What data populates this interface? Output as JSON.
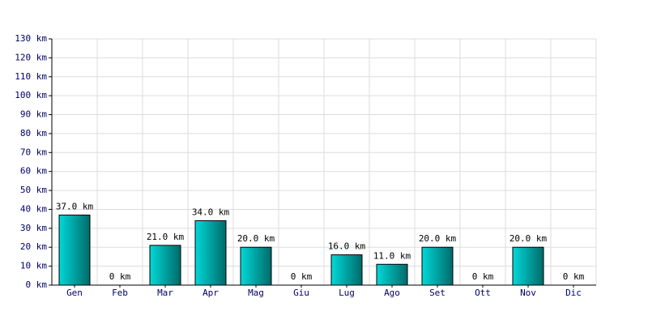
{
  "chart_data": {
    "type": "bar",
    "categories": [
      "Gen",
      "Feb",
      "Mar",
      "Apr",
      "Mag",
      "Giu",
      "Lug",
      "Ago",
      "Set",
      "Ott",
      "Nov",
      "Dic"
    ],
    "values": [
      37,
      0,
      21,
      34,
      20,
      0,
      16,
      11,
      20,
      0,
      20,
      0
    ],
    "value_labels": [
      "37.0 km",
      "0 km",
      "21.0 km",
      "34.0 km",
      "20.0 km",
      "0 km",
      "16.0 km",
      "11.0 km",
      "20.0 km",
      "0 km",
      "20.0 km",
      "0 km"
    ],
    "color": "#00d8d8",
    "ylim": [
      0,
      130
    ],
    "yticks": [
      {
        "value": 0,
        "label": "0 km"
      },
      {
        "value": 10,
        "label": "10 km"
      },
      {
        "value": 20,
        "label": "20 km"
      },
      {
        "value": 30,
        "label": "30 km"
      },
      {
        "value": 40,
        "label": "40 km"
      },
      {
        "value": 50,
        "label": "50 km"
      },
      {
        "value": 60,
        "label": "60 km"
      },
      {
        "value": 70,
        "label": "70 km"
      },
      {
        "value": 80,
        "label": "80 km"
      },
      {
        "value": 90,
        "label": "90 km"
      },
      {
        "value": 100,
        "label": "100 km"
      },
      {
        "value": 110,
        "label": "110 km"
      },
      {
        "value": 120,
        "label": "120 km"
      },
      {
        "value": 130,
        "label": "130 km"
      }
    ],
    "grid": true
  }
}
